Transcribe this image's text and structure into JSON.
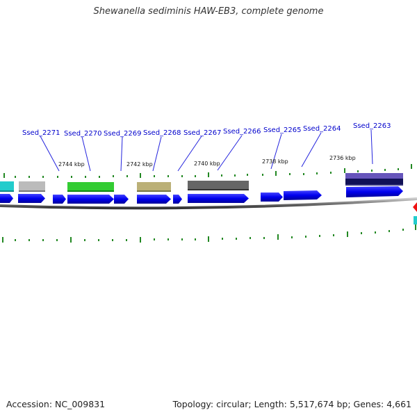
{
  "title": "Shewanella sediminis HAW-EB3, complete genome",
  "footer": {
    "accession": "Accession: NC_009831",
    "summary": "Topology: circular; Length: 5,517,674 bp; Genes: 4,661"
  },
  "gene_labels": [
    "Ssed_2271",
    "Ssed_2270",
    "Ssed_2269",
    "Ssed_2268",
    "Ssed_2267",
    "Ssed_2266",
    "Ssed_2265",
    "Ssed_2264",
    "Ssed_2263"
  ],
  "kbp_labels": [
    "2744 kbp",
    "2742 kbp",
    "2740 kbp",
    "2738 kbp",
    "2736 kbp"
  ],
  "colors": {
    "gene": "#0000ee",
    "backbone": "#888888",
    "tick": "#228822",
    "label_line": "#2222dd",
    "cyan": "#22cccc",
    "gray": "#bbbbbb",
    "green": "#33cc33",
    "khaki": "#bbb077",
    "darkgray": "#666666",
    "purple": "#6655bb",
    "red": "#ee1111"
  }
}
